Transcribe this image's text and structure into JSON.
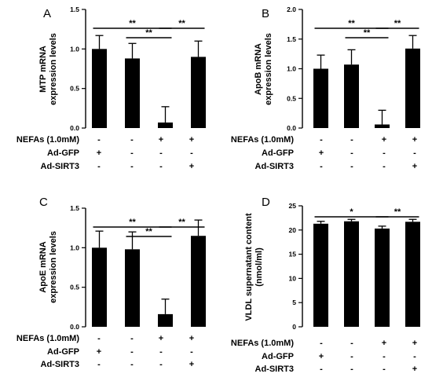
{
  "chart_data": [
    {
      "type": "bar",
      "panel": "A",
      "ylabel_line1": "MTP mRNA",
      "ylabel_line2": "expression levels",
      "ylim": [
        0,
        1.5
      ],
      "yticks": [
        "0.0",
        "0.5",
        "1.0",
        "1.5"
      ],
      "values": [
        1.0,
        0.88,
        0.07,
        0.9
      ],
      "errors": [
        0.17,
        0.19,
        0.2,
        0.2
      ],
      "significance": [
        {
          "from": 0,
          "to": 2,
          "label": "**"
        },
        {
          "from": 1,
          "to": 2,
          "label": "**"
        },
        {
          "from": 2,
          "to": 3,
          "label": "**"
        }
      ],
      "conditions": [
        {
          "label": "NEFAs (1.0mM)",
          "signs": [
            "-",
            "-",
            "+",
            "+"
          ]
        },
        {
          "label": "Ad-GFP",
          "signs": [
            "+",
            "-",
            "-",
            "-"
          ]
        },
        {
          "label": "Ad-SIRT3",
          "signs": [
            "-",
            "-",
            "-",
            "+"
          ]
        }
      ]
    },
    {
      "type": "bar",
      "panel": "B",
      "ylabel_line1": "ApoB mRNA",
      "ylabel_line2": "expression levels",
      "ylim": [
        0,
        2.0
      ],
      "yticks": [
        "0.0",
        "0.5",
        "1.0",
        "1.5",
        "2.0"
      ],
      "values": [
        1.0,
        1.07,
        0.06,
        1.34
      ],
      "errors": [
        0.23,
        0.25,
        0.24,
        0.22
      ],
      "significance": [
        {
          "from": 0,
          "to": 2,
          "label": "**"
        },
        {
          "from": 1,
          "to": 2,
          "label": "**"
        },
        {
          "from": 2,
          "to": 3,
          "label": "**"
        }
      ],
      "conditions": [
        {
          "label": "NEFAs (1.0mM)",
          "signs": [
            "-",
            "-",
            "+",
            "+"
          ]
        },
        {
          "label": "Ad-GFP",
          "signs": [
            "+",
            "-",
            "-",
            "-"
          ]
        },
        {
          "label": "Ad-SIRT3",
          "signs": [
            "-",
            "-",
            "-",
            "+"
          ]
        }
      ]
    },
    {
      "type": "bar",
      "panel": "C",
      "ylabel_line1": "ApoE mRNA",
      "ylabel_line2": "expression levels",
      "ylim": [
        0,
        1.5
      ],
      "yticks": [
        "0.0",
        "0.5",
        "1.0",
        "1.5"
      ],
      "values": [
        1.0,
        0.98,
        0.16,
        1.15
      ],
      "errors": [
        0.21,
        0.22,
        0.19,
        0.2
      ],
      "significance": [
        {
          "from": 0,
          "to": 2,
          "label": "**"
        },
        {
          "from": 1,
          "to": 2,
          "label": "**"
        },
        {
          "from": 2,
          "to": 3,
          "label": "**"
        }
      ],
      "conditions": [
        {
          "label": "NEFAs (1.0mM)",
          "signs": [
            "-",
            "-",
            "+",
            "+"
          ]
        },
        {
          "label": "Ad-GFP",
          "signs": [
            "+",
            "-",
            "-",
            "-"
          ]
        },
        {
          "label": "Ad-SIRT3",
          "signs": [
            "-",
            "-",
            "-",
            "+"
          ]
        }
      ]
    },
    {
      "type": "bar",
      "panel": "D",
      "ylabel_line1": "VLDL supernatant content",
      "ylabel_line2": "(nmol/ml)",
      "ylim": [
        0,
        25
      ],
      "yticks": [
        "0",
        "5",
        "10",
        "15",
        "20",
        "25"
      ],
      "values": [
        21.3,
        21.8,
        20.3,
        21.7
      ],
      "errors": [
        0.5,
        0.4,
        0.5,
        0.5
      ],
      "significance": [
        {
          "from": 0,
          "to": 2,
          "label": "*"
        },
        {
          "from": 2,
          "to": 3,
          "label": "**"
        }
      ],
      "conditions": [
        {
          "label": "NEFAs (1.0mM)",
          "signs": [
            "-",
            "-",
            "+",
            "+"
          ]
        },
        {
          "label": "Ad-GFP",
          "signs": [
            "+",
            "-",
            "-",
            "-"
          ]
        },
        {
          "label": "Ad-SIRT3",
          "signs": [
            "-",
            "-",
            "-",
            "+"
          ]
        }
      ]
    }
  ]
}
